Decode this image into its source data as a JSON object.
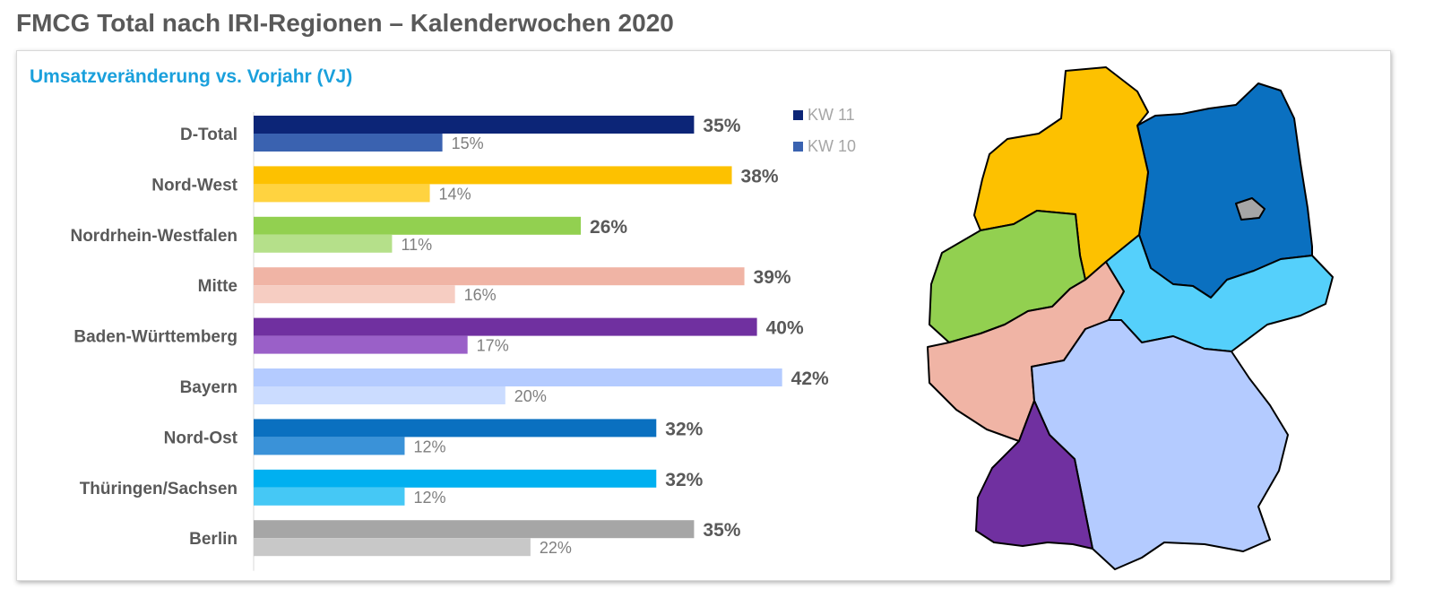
{
  "page": {
    "title": "FMCG Total nach IRI-Regionen – Kalenderwochen 2020"
  },
  "chart_data": {
    "type": "bar",
    "orientation": "horizontal",
    "subtitle": "Umsatzveränderung vs. Vorjahr (VJ)",
    "categories": [
      "D-Total",
      "Nord-West",
      "Nordrhein-Westfalen",
      "Mitte",
      "Baden-Württemberg",
      "Bayern",
      "Nord-Ost",
      "Thüringen/Sachsen",
      "Berlin"
    ],
    "series": [
      {
        "name": "KW 11",
        "values": [
          35,
          38,
          26,
          39,
          40,
          42,
          32,
          32,
          35
        ],
        "labels": [
          "35%",
          "38%",
          "26%",
          "39%",
          "40%",
          "42%",
          "32%",
          "32%",
          "35%"
        ]
      },
      {
        "name": "KW 10",
        "values": [
          15,
          14,
          11,
          16,
          17,
          20,
          12,
          12,
          22
        ],
        "labels": [
          "15%",
          "14%",
          "11%",
          "16%",
          "17%",
          "20%",
          "12%",
          "12%",
          "22%"
        ]
      }
    ],
    "unit": "%",
    "xlim": [
      0,
      45
    ],
    "grid": false,
    "legend_position": "top-right",
    "category_colors_kw11": [
      "#0c2577",
      "#fdc100",
      "#92d050",
      "#f0b4a5",
      "#7030a0",
      "#b4cbff",
      "#0a70c0",
      "#00b0f0",
      "#a6a6a6"
    ],
    "category_colors_kw10": [
      "#3a62b0",
      "#ffd340",
      "#b5e08a",
      "#f6cdc2",
      "#9a60c8",
      "#cbdcff",
      "#3a92d8",
      "#45c8f5",
      "#c8c8c8"
    ],
    "legend_colors": [
      "#0c2577",
      "#3a62b0"
    ]
  },
  "map": {
    "regions": [
      {
        "name": "Nord-West",
        "color": "#fdc100"
      },
      {
        "name": "Nordrhein-Westfalen",
        "color": "#92d050"
      },
      {
        "name": "Mitte",
        "color": "#f0b4a5"
      },
      {
        "name": "Baden-Württemberg",
        "color": "#7030a0"
      },
      {
        "name": "Bayern",
        "color": "#b4cbff"
      },
      {
        "name": "Nord-Ost",
        "color": "#0a70c0"
      },
      {
        "name": "Thüringen/Sachsen",
        "color": "#55d0fb"
      },
      {
        "name": "Berlin",
        "color": "#a6a6a6"
      }
    ]
  }
}
